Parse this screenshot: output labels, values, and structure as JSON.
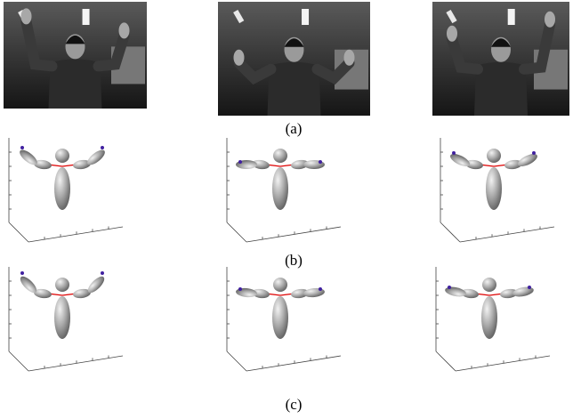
{
  "figure": {
    "labels": [
      "(a)",
      "(b)",
      "(c)"
    ]
  }
}
